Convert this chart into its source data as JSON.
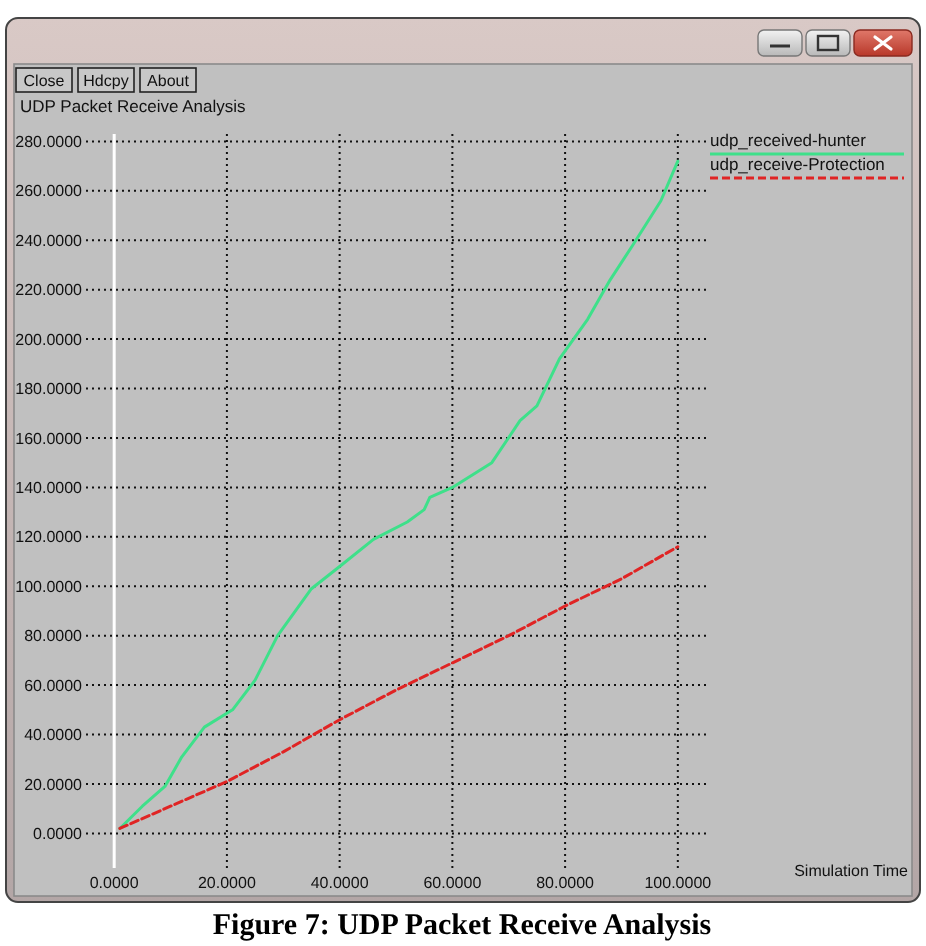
{
  "chart_data": {
    "type": "line",
    "title": "UDP Packet Receive Analysis",
    "annotations": [
      "Close",
      "Hdcpy",
      "About",
      "Simulation Time",
      "Figure 7: UDP Packet Receive Analysis"
    ],
    "series": [
      {
        "name": "udp_received-hunter",
        "color": "#3ee08a",
        "x": [
          1,
          5,
          9,
          12,
          16,
          21,
          25,
          29,
          35,
          40,
          46,
          52,
          55,
          56,
          60,
          67,
          72,
          75,
          79,
          84,
          88,
          92,
          97,
          100
        ],
        "values": [
          2,
          11,
          19,
          31,
          43,
          50,
          62,
          80,
          99,
          108,
          119,
          126,
          131,
          136,
          140,
          150,
          167,
          173,
          192,
          208,
          224,
          238,
          256,
          272
        ]
      },
      {
        "name": "udp_receive-Protection",
        "color": "#e02424",
        "line_style": "dashed",
        "x": [
          1,
          10,
          20,
          30,
          40,
          50,
          60,
          70,
          80,
          90,
          100
        ],
        "values": [
          2,
          11,
          21,
          33,
          46,
          58,
          69,
          80,
          92,
          103,
          116
        ]
      }
    ],
    "xlim": [
      -5,
      105
    ],
    "ylim": [
      -14,
      283
    ],
    "xticks": [
      {
        "value": 0,
        "label": "0.0000"
      },
      {
        "value": 20,
        "label": "20.0000"
      },
      {
        "value": 40,
        "label": "40.0000"
      },
      {
        "value": 60,
        "label": "60.0000"
      },
      {
        "value": 80,
        "label": "80.0000"
      },
      {
        "value": 100,
        "label": "100.0000"
      }
    ],
    "yticks": [
      {
        "value": 0,
        "label": "0.0000"
      },
      {
        "value": 20,
        "label": "20.0000"
      },
      {
        "value": 40,
        "label": "40.0000"
      },
      {
        "value": 60,
        "label": "60.0000"
      },
      {
        "value": 80,
        "label": "80.0000"
      },
      {
        "value": 100,
        "label": "100.0000"
      },
      {
        "value": 120,
        "label": "120.0000"
      },
      {
        "value": 140,
        "label": "140.0000"
      },
      {
        "value": 160,
        "label": "160.0000"
      },
      {
        "value": 180,
        "label": "180.0000"
      },
      {
        "value": 200,
        "label": "200.0000"
      },
      {
        "value": 220,
        "label": "220.0000"
      },
      {
        "value": 240,
        "label": "240.0000"
      },
      {
        "value": 260,
        "label": "260.0000"
      },
      {
        "value": 280,
        "label": "280.0000"
      }
    ],
    "grid": true,
    "legend": "top right"
  }
}
